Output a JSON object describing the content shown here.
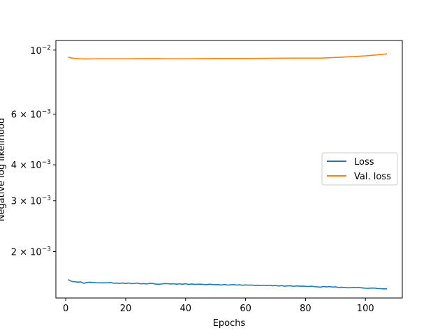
{
  "chart_data": {
    "type": "line",
    "title": "",
    "xlabel": "Epochs",
    "ylabel": "Negative log likelihood",
    "xscale": "linear",
    "yscale": "log",
    "xlim": [
      -3.3,
      112.3
    ],
    "ylim": [
      0.00138,
      0.0108
    ],
    "grid": false,
    "legend_position": "center-right",
    "x_ticks": [
      0,
      20,
      40,
      60,
      80,
      100
    ],
    "x_tick_labels": [
      "0",
      "20",
      "40",
      "60",
      "80",
      "100"
    ],
    "y_ticks": [
      {
        "value": 0.01,
        "base": "10",
        "exp": "−2",
        "mantissa": ""
      },
      {
        "value": 0.006,
        "base": "10",
        "exp": "−3",
        "mantissa": "6 × "
      },
      {
        "value": 0.004,
        "base": "10",
        "exp": "−3",
        "mantissa": "4 × "
      },
      {
        "value": 0.003,
        "base": "10",
        "exp": "−3",
        "mantissa": "3 × "
      },
      {
        "value": 0.002,
        "base": "10",
        "exp": "−3",
        "mantissa": "2 × "
      }
    ],
    "series": [
      {
        "name": "Loss",
        "color": "#1f77b4",
        "x": [
          1,
          2,
          3,
          4,
          5,
          6,
          7,
          8,
          9,
          10,
          11,
          12,
          13,
          14,
          15,
          16,
          17,
          18,
          19,
          20,
          21,
          22,
          23,
          24,
          25,
          26,
          27,
          28,
          29,
          30,
          31,
          32,
          33,
          34,
          35,
          36,
          37,
          38,
          39,
          40,
          41,
          42,
          43,
          44,
          45,
          46,
          47,
          48,
          49,
          50,
          51,
          52,
          53,
          54,
          55,
          56,
          57,
          58,
          59,
          60,
          61,
          62,
          63,
          64,
          65,
          66,
          67,
          68,
          69,
          70,
          71,
          72,
          73,
          74,
          75,
          76,
          77,
          78,
          79,
          80,
          81,
          82,
          83,
          84,
          85,
          86,
          87,
          88,
          89,
          90,
          91,
          92,
          93,
          94,
          95,
          96,
          97,
          98,
          99,
          100,
          101,
          102,
          103,
          104,
          105,
          106,
          107
        ],
        "y": [
          0.001595,
          0.001575,
          0.001572,
          0.001566,
          0.00157,
          0.001552,
          0.001562,
          0.001565,
          0.001563,
          0.00156,
          0.001558,
          0.001557,
          0.001559,
          0.001558,
          0.001562,
          0.001553,
          0.001555,
          0.001551,
          0.001556,
          0.00155,
          0.001556,
          0.001547,
          0.001552,
          0.001555,
          0.001545,
          0.001549,
          0.001544,
          0.001552,
          0.00155,
          0.001542,
          0.00154,
          0.001544,
          0.001549,
          0.001547,
          0.001543,
          0.001546,
          0.001541,
          0.001546,
          0.00154,
          0.001547,
          0.001538,
          0.001543,
          0.001539,
          0.00154,
          0.001541,
          0.001538,
          0.001535,
          0.001541,
          0.001537,
          0.001535,
          0.001536,
          0.001531,
          0.001538,
          0.00153,
          0.001534,
          0.001536,
          0.001531,
          0.001534,
          0.001528,
          0.001532,
          0.00153,
          0.001531,
          0.001527,
          0.001528,
          0.001526,
          0.001529,
          0.001525,
          0.001529,
          0.001521,
          0.001527,
          0.001519,
          0.001524,
          0.001517,
          0.00152,
          0.001522,
          0.001515,
          0.00152,
          0.001517,
          0.001518,
          0.001515,
          0.001513,
          0.001517,
          0.001511,
          0.001508,
          0.001505,
          0.001513,
          0.001508,
          0.001512,
          0.001506,
          0.001508,
          0.001502,
          0.001504,
          0.001501,
          0.001498,
          0.001498,
          0.001501,
          0.001499,
          0.0015,
          0.001496,
          0.001492,
          0.001491,
          0.001494,
          0.001493,
          0.001489,
          0.001488,
          0.001484,
          0.001485
        ]
      },
      {
        "name": "Val. loss",
        "color": "#ff7f0e",
        "x": [
          1,
          2,
          3,
          4,
          5,
          6,
          8,
          10,
          15,
          20,
          25,
          30,
          35,
          40,
          45,
          50,
          55,
          60,
          65,
          70,
          75,
          80,
          85,
          88,
          92,
          96,
          100,
          103,
          105,
          107
        ],
        "y": [
          0.00943,
          0.00939,
          0.00936,
          0.00934,
          0.00933,
          0.00932,
          0.00932,
          0.00933,
          0.00933,
          0.00933,
          0.00934,
          0.00934,
          0.00933,
          0.00933,
          0.00934,
          0.00935,
          0.00935,
          0.00935,
          0.00936,
          0.00937,
          0.00938,
          0.00938,
          0.00938,
          0.00941,
          0.00945,
          0.0095,
          0.00955,
          0.00961,
          0.00965,
          0.0097
        ]
      }
    ]
  }
}
